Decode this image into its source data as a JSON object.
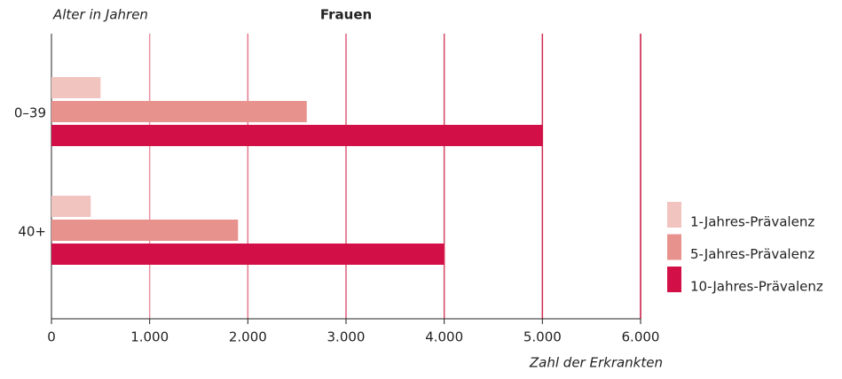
{
  "chart_data": {
    "type": "hbar",
    "title": "Frauen",
    "y_label": "Alter in Jahren",
    "x_label": "Zahl der Erkrankten",
    "categories": [
      "0–39",
      "40+"
    ],
    "series": [
      {
        "name": "1-Jahres-Prävalenz",
        "color": "#f2c4c0",
        "values": [
          500,
          400
        ]
      },
      {
        "name": "5-Jahres-Prävalenz",
        "color": "#e8928e",
        "values": [
          2600,
          1900
        ]
      },
      {
        "name": "10-Jahres-Prävalenz",
        "color": "#d20f46",
        "values": [
          5000,
          4000
        ]
      }
    ],
    "xlim": [
      0,
      6000
    ],
    "xticks": [
      0,
      {
        "value": 1000,
        "label": "1.000"
      },
      {
        "value": 2000,
        "label": "2.000"
      },
      {
        "value": 3000,
        "label": "3.000"
      },
      {
        "value": 4000,
        "label": "4.000"
      },
      {
        "value": 5000,
        "label": "5.000"
      },
      {
        "value": 6000,
        "label": "6.000"
      }
    ],
    "grid": true,
    "legend": "right"
  }
}
